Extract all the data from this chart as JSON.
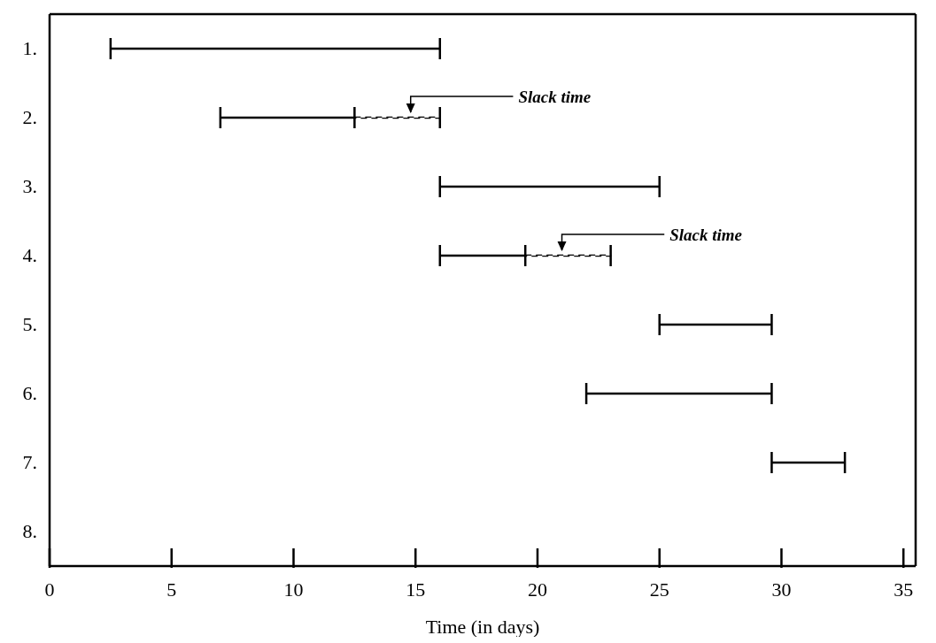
{
  "chart_data": {
    "type": "bar",
    "orientation": "horizontal",
    "xlabel": "Time (in days)",
    "categories": [
      "1.",
      "2.",
      "3.",
      "4.",
      "5.",
      "6.",
      "7.",
      "8."
    ],
    "series": [
      {
        "color": "#000000",
        "line_style": "solid",
        "base": [
          2.5,
          7,
          16,
          16,
          25,
          22,
          29.6,
          null
        ],
        "values": [
          13.5,
          5.5,
          9,
          3.5,
          4.6,
          7.6,
          3,
          null
        ]
      },
      {
        "color": "#000000",
        "line_style": "dashed",
        "base": [
          null,
          12.5,
          null,
          19.5,
          null,
          null,
          null,
          null
        ],
        "values": [
          null,
          3.5,
          null,
          3.5,
          null,
          null,
          null,
          null
        ]
      }
    ],
    "xlim": [
      0,
      35.5
    ],
    "xticks": [
      0,
      5,
      10,
      15,
      20,
      25,
      30,
      35
    ],
    "grid": false,
    "legend": false,
    "annotations": [
      {
        "text": "Slack time",
        "x": 14.8,
        "y": "2."
      },
      {
        "text": "Slack time",
        "x": 21,
        "y": "4."
      }
    ]
  }
}
